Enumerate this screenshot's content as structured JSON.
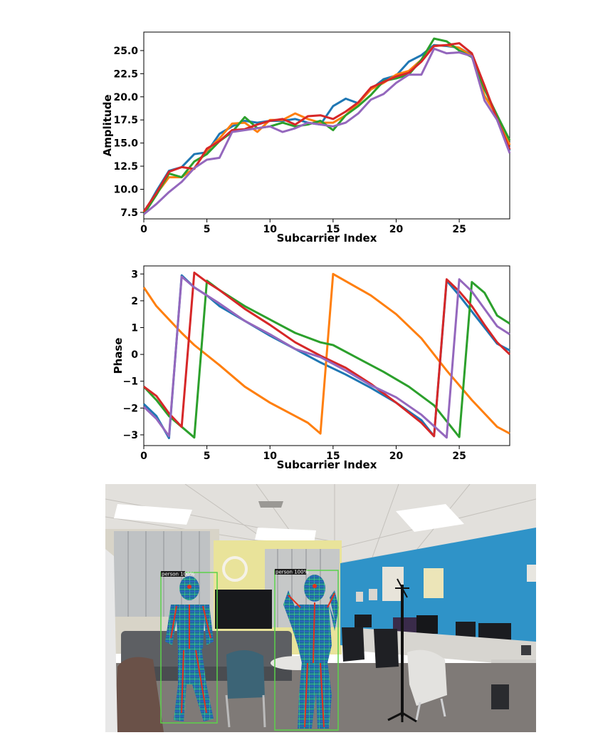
{
  "chart_data": [
    {
      "type": "line",
      "title": "",
      "xlabel": "Subcarrier Index",
      "ylabel": "Amplitude",
      "xlim": [
        0,
        29
      ],
      "ylim": [
        6.8,
        27.0
      ],
      "xticks": [
        0,
        5,
        10,
        15,
        20,
        25
      ],
      "yticks": [
        7.5,
        10.0,
        12.5,
        15.0,
        17.5,
        20.0,
        22.5,
        25.0
      ],
      "grid": false,
      "x": [
        0,
        1,
        2,
        3,
        4,
        5,
        6,
        7,
        8,
        9,
        10,
        11,
        12,
        13,
        14,
        15,
        16,
        17,
        18,
        19,
        20,
        21,
        22,
        23,
        24,
        25,
        26,
        27,
        28,
        29
      ],
      "series": [
        {
          "color": "#1f77b4",
          "values": [
            7.4,
            9.8,
            12.0,
            12.4,
            13.8,
            14.0,
            16.0,
            16.8,
            17.4,
            17.2,
            17.4,
            17.4,
            17.6,
            17.2,
            17.0,
            19.0,
            19.8,
            19.3,
            20.8,
            21.9,
            22.3,
            23.8,
            24.5,
            25.6,
            25.5,
            25.3,
            24.5,
            21.0,
            17.5,
            14.2
          ]
        },
        {
          "color": "#ff7f0e",
          "values": [
            7.5,
            9.5,
            11.3,
            11.3,
            12.3,
            14.2,
            15.5,
            17.1,
            17.2,
            16.2,
            17.5,
            17.5,
            18.2,
            17.6,
            17.2,
            17.2,
            18.0,
            19.3,
            20.8,
            21.5,
            22.4,
            22.8,
            24.0,
            25.5,
            25.6,
            25.3,
            24.4,
            20.1,
            17.9,
            14.8
          ]
        },
        {
          "color": "#2ca02c",
          "values": [
            7.3,
            9.4,
            11.7,
            11.3,
            13.0,
            13.8,
            15.2,
            16.2,
            17.8,
            16.6,
            16.8,
            17.2,
            16.8,
            17.0,
            17.4,
            16.4,
            18.0,
            19.0,
            20.2,
            21.7,
            22.0,
            22.4,
            24.0,
            26.3,
            26.0,
            25.0,
            24.3,
            20.8,
            18.0,
            15.3
          ]
        },
        {
          "color": "#d62728",
          "values": [
            7.6,
            9.6,
            11.9,
            12.4,
            12.2,
            14.4,
            15.2,
            16.4,
            16.5,
            17.0,
            17.4,
            17.6,
            17.0,
            17.9,
            18.0,
            17.6,
            18.4,
            19.4,
            21.0,
            21.6,
            22.2,
            22.6,
            23.8,
            25.5,
            25.6,
            25.8,
            24.7,
            21.2,
            17.6,
            14.3
          ]
        },
        {
          "color": "#9467bd",
          "values": [
            7.3,
            8.4,
            9.7,
            10.8,
            12.3,
            13.2,
            13.4,
            16.2,
            16.4,
            16.6,
            16.8,
            16.2,
            16.6,
            17.2,
            17.0,
            16.8,
            17.2,
            18.2,
            19.7,
            20.3,
            21.5,
            22.4,
            22.4,
            25.2,
            24.7,
            24.8,
            24.4,
            19.6,
            17.5,
            13.9
          ]
        }
      ]
    },
    {
      "type": "line",
      "title": "",
      "xlabel": "Subcarrier Index",
      "ylabel": "Phase",
      "xlim": [
        0,
        29
      ],
      "ylim": [
        -3.4,
        3.3
      ],
      "xticks": [
        0,
        5,
        10,
        15,
        20,
        25
      ],
      "yticks": [
        -3,
        -2,
        -1,
        0,
        1,
        2,
        3
      ],
      "grid": false,
      "series": [
        {
          "color": "#1f77b4",
          "points": [
            [
              0,
              -1.85
            ],
            [
              1,
              -2.3
            ],
            [
              2,
              -3.12
            ],
            [
              3,
              2.95
            ],
            [
              4,
              2.5
            ],
            [
              5,
              2.2
            ],
            [
              6,
              1.8
            ],
            [
              8,
              1.25
            ],
            [
              10,
              0.7
            ],
            [
              12,
              0.2
            ],
            [
              14,
              -0.3
            ],
            [
              16,
              -0.75
            ],
            [
              18,
              -1.25
            ],
            [
              20,
              -1.8
            ],
            [
              22,
              -2.45
            ],
            [
              23,
              -3.05
            ],
            [
              24,
              2.75
            ],
            [
              25,
              2.2
            ],
            [
              26,
              1.6
            ],
            [
              27,
              1.0
            ],
            [
              28,
              0.4
            ],
            [
              29,
              0.15
            ]
          ]
        },
        {
          "color": "#ff7f0e",
          "points": [
            [
              0,
              2.5
            ],
            [
              1,
              1.8
            ],
            [
              2,
              1.3
            ],
            [
              3,
              0.8
            ],
            [
              4,
              0.35
            ],
            [
              6,
              -0.4
            ],
            [
              8,
              -1.2
            ],
            [
              10,
              -1.8
            ],
            [
              12,
              -2.3
            ],
            [
              13,
              -2.55
            ],
            [
              14,
              -2.95
            ],
            [
              15,
              3.0
            ],
            [
              18,
              2.2
            ],
            [
              20,
              1.5
            ],
            [
              22,
              0.6
            ],
            [
              24,
              -0.6
            ],
            [
              26,
              -1.7
            ],
            [
              28,
              -2.7
            ],
            [
              29,
              -2.95
            ]
          ]
        },
        {
          "color": "#2ca02c",
          "points": [
            [
              0,
              -1.2
            ],
            [
              1,
              -1.7
            ],
            [
              2,
              -2.3
            ],
            [
              3,
              -2.7
            ],
            [
              4,
              -3.1
            ],
            [
              5,
              2.75
            ],
            [
              6,
              2.4
            ],
            [
              8,
              1.8
            ],
            [
              10,
              1.3
            ],
            [
              12,
              0.8
            ],
            [
              14,
              0.45
            ],
            [
              15,
              0.35
            ],
            [
              17,
              -0.15
            ],
            [
              19,
              -0.65
            ],
            [
              21,
              -1.2
            ],
            [
              23,
              -1.9
            ],
            [
              25,
              -3.08
            ],
            [
              26,
              2.7
            ],
            [
              27,
              2.3
            ],
            [
              28,
              1.45
            ],
            [
              29,
              1.15
            ]
          ]
        },
        {
          "color": "#d62728",
          "points": [
            [
              0,
              -1.2
            ],
            [
              1,
              -1.55
            ],
            [
              2,
              -2.2
            ],
            [
              3,
              -2.7
            ],
            [
              4,
              3.05
            ],
            [
              5,
              2.7
            ],
            [
              6,
              2.4
            ],
            [
              8,
              1.7
            ],
            [
              10,
              1.1
            ],
            [
              12,
              0.45
            ],
            [
              14,
              -0.05
            ],
            [
              16,
              -0.5
            ],
            [
              18,
              -1.1
            ],
            [
              20,
              -1.8
            ],
            [
              22,
              -2.55
            ],
            [
              23,
              -3.05
            ],
            [
              24,
              2.8
            ],
            [
              25,
              2.35
            ],
            [
              26,
              1.8
            ],
            [
              27,
              1.1
            ],
            [
              28,
              0.45
            ],
            [
              29,
              0.0
            ]
          ]
        },
        {
          "color": "#9467bd",
          "points": [
            [
              0,
              -1.95
            ],
            [
              1,
              -2.4
            ],
            [
              2,
              -3.05
            ],
            [
              3,
              2.9
            ],
            [
              4,
              2.5
            ],
            [
              6,
              1.9
            ],
            [
              8,
              1.25
            ],
            [
              10,
              0.75
            ],
            [
              12,
              0.2
            ],
            [
              14,
              -0.1
            ],
            [
              16,
              -0.6
            ],
            [
              18,
              -1.15
            ],
            [
              20,
              -1.6
            ],
            [
              22,
              -2.25
            ],
            [
              24,
              -3.1
            ],
            [
              25,
              2.8
            ],
            [
              26,
              2.35
            ],
            [
              27,
              1.7
            ],
            [
              28,
              1.05
            ],
            [
              29,
              0.75
            ]
          ]
        }
      ]
    }
  ],
  "photo": {
    "detections": [
      {
        "label": "person 100%"
      },
      {
        "label": "person 100%"
      }
    ],
    "colors": {
      "box": "#5bd24a",
      "wall_blue": "#2f93c8",
      "ceiling": "#d8d6d2",
      "floor": "#7d7775",
      "mesh": "#3fd66a",
      "mesh_blue": "#3a5fd8",
      "skeleton": "#e0321e"
    }
  }
}
